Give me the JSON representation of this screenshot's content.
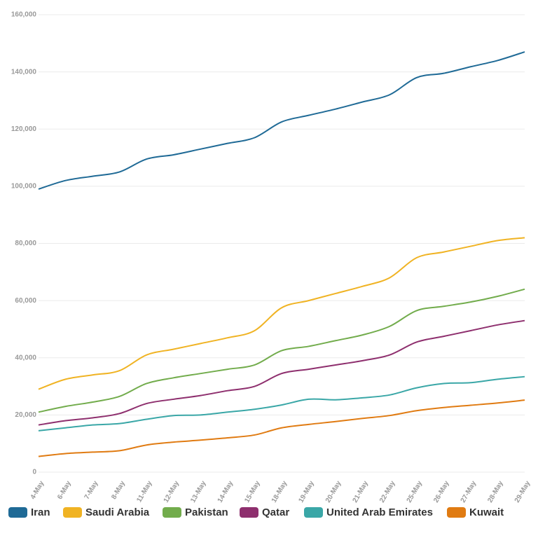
{
  "chart_data": {
    "type": "line",
    "categories": [
      "4-May",
      "6-May",
      "7-May",
      "8-May",
      "11-May",
      "12-May",
      "13-May",
      "14-May",
      "15-May",
      "18-May",
      "19-May",
      "20-May",
      "21-May",
      "22-May",
      "25-May",
      "26-May",
      "27-May",
      "28-May",
      "29-May"
    ],
    "series": [
      {
        "name": "Iran",
        "color": "#1f6a96",
        "values": [
          99000,
          102000,
          103500,
          105000,
          109500,
          111000,
          113000,
          115000,
          117000,
          122500,
          124800,
          127000,
          129500,
          132000,
          138000,
          139500,
          141800,
          144000,
          147000
        ]
      },
      {
        "name": "Saudi Arabia",
        "color": "#f0b323",
        "values": [
          29000,
          32500,
          34000,
          35500,
          41000,
          43000,
          45000,
          47000,
          49500,
          57500,
          60000,
          62500,
          65000,
          68000,
          75000,
          77000,
          79000,
          81000,
          82000
        ]
      },
      {
        "name": "Pakistan",
        "color": "#72ac4c",
        "values": [
          21000,
          23000,
          24500,
          26500,
          31000,
          33000,
          34500,
          36000,
          37500,
          42500,
          44000,
          46000,
          48000,
          51000,
          56500,
          58000,
          59500,
          61500,
          64000
        ]
      },
      {
        "name": "Qatar",
        "color": "#8e2f6e",
        "values": [
          16500,
          18000,
          19000,
          20500,
          24000,
          25500,
          26800,
          28500,
          30000,
          34500,
          36000,
          37500,
          39000,
          41000,
          45500,
          47500,
          49500,
          51500,
          53000
        ]
      },
      {
        "name": "United Arab Emirates",
        "color": "#3aa7a7",
        "values": [
          14500,
          15500,
          16500,
          17000,
          18500,
          19800,
          20000,
          21000,
          22000,
          23500,
          25500,
          25300,
          26000,
          27000,
          29500,
          31000,
          31300,
          32500,
          33400
        ]
      },
      {
        "name": "Kuwait",
        "color": "#e07b12",
        "values": [
          5500,
          6500,
          7000,
          7500,
          9500,
          10500,
          11200,
          12000,
          13000,
          15500,
          16700,
          17700,
          18800,
          19800,
          21500,
          22600,
          23400,
          24200,
          25200
        ]
      }
    ],
    "ylim": [
      0,
      160000
    ],
    "yticks": [
      0,
      {
        "value": 20000,
        "label": "20,000"
      },
      {
        "value": 40000,
        "label": "40,000"
      },
      {
        "value": 60000,
        "label": "60,000"
      },
      {
        "value": 80000,
        "label": "80,000"
      },
      {
        "value": 100000,
        "label": "100,000"
      },
      {
        "value": 120000,
        "label": "120,000"
      },
      {
        "value": 140000,
        "label": "140,000"
      },
      {
        "value": 160000,
        "label": "160,000"
      }
    ],
    "grid": true,
    "legend": "bottom"
  }
}
